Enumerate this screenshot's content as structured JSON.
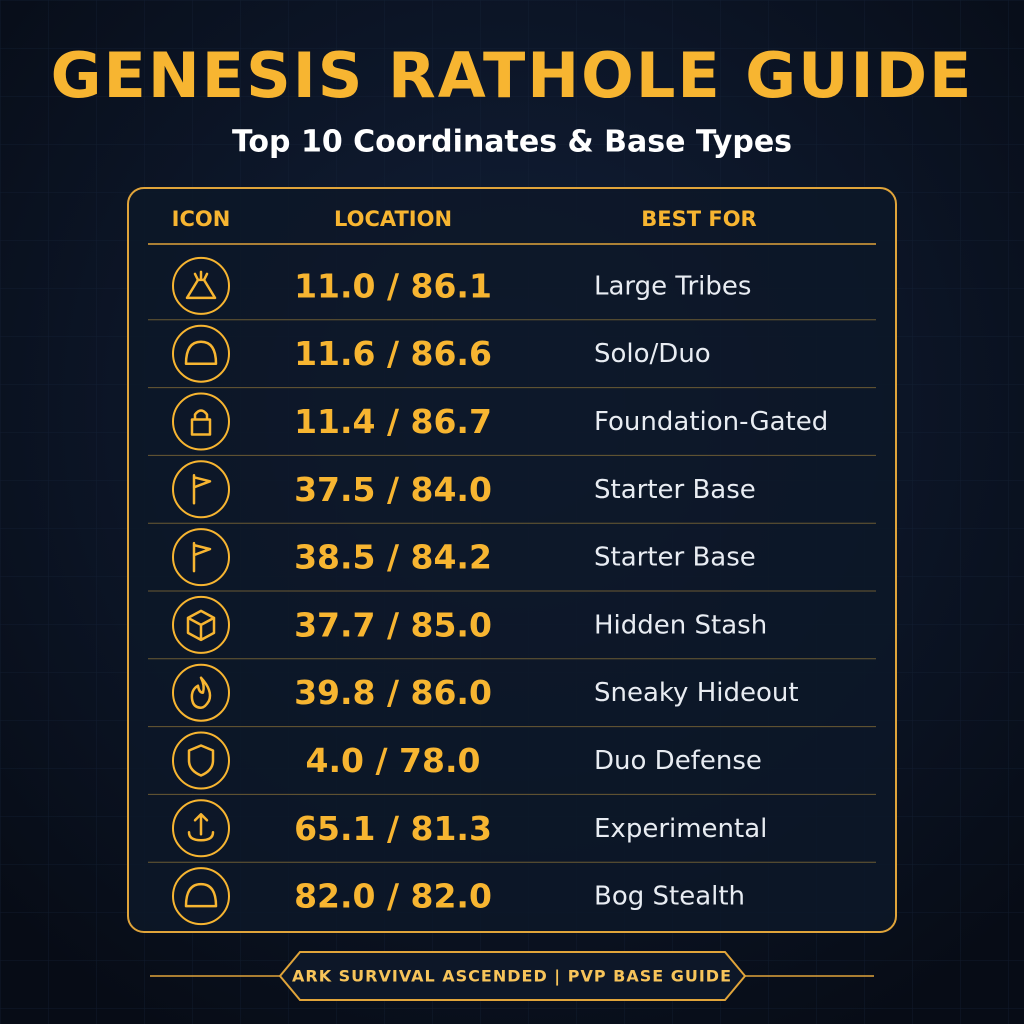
{
  "header": {
    "title": "GENESIS RATHOLE GUIDE",
    "subtitle": "Top 10 Coordinates & Base Types"
  },
  "table": {
    "columns": [
      "ICON",
      "LOCATION",
      "BEST FOR"
    ],
    "rows": [
      [
        "11.0 / 86.1",
        "Large Tribes"
      ],
      [
        "11.6 / 86.6",
        "Solo/Duo"
      ],
      [
        "11.4 / 86.7",
        "Foundation-Gated"
      ],
      [
        "37.5 / 84.0",
        "Starter Base"
      ],
      [
        "38.5 / 84.2",
        "Starter Base"
      ],
      [
        "37.7 / 85.0",
        "Hidden Stash"
      ],
      [
        "39.8 / 86.0",
        "Sneaky Hideout"
      ],
      [
        "4.0 / 78.0",
        "Duo Defense"
      ],
      [
        "65.1 / 81.3",
        "Experimental"
      ],
      [
        "82.0 / 82.0",
        "Bog Stealth"
      ]
    ]
  },
  "footer": "ARK SURVIVAL ASCENDED | PVP BASE GUIDE"
}
